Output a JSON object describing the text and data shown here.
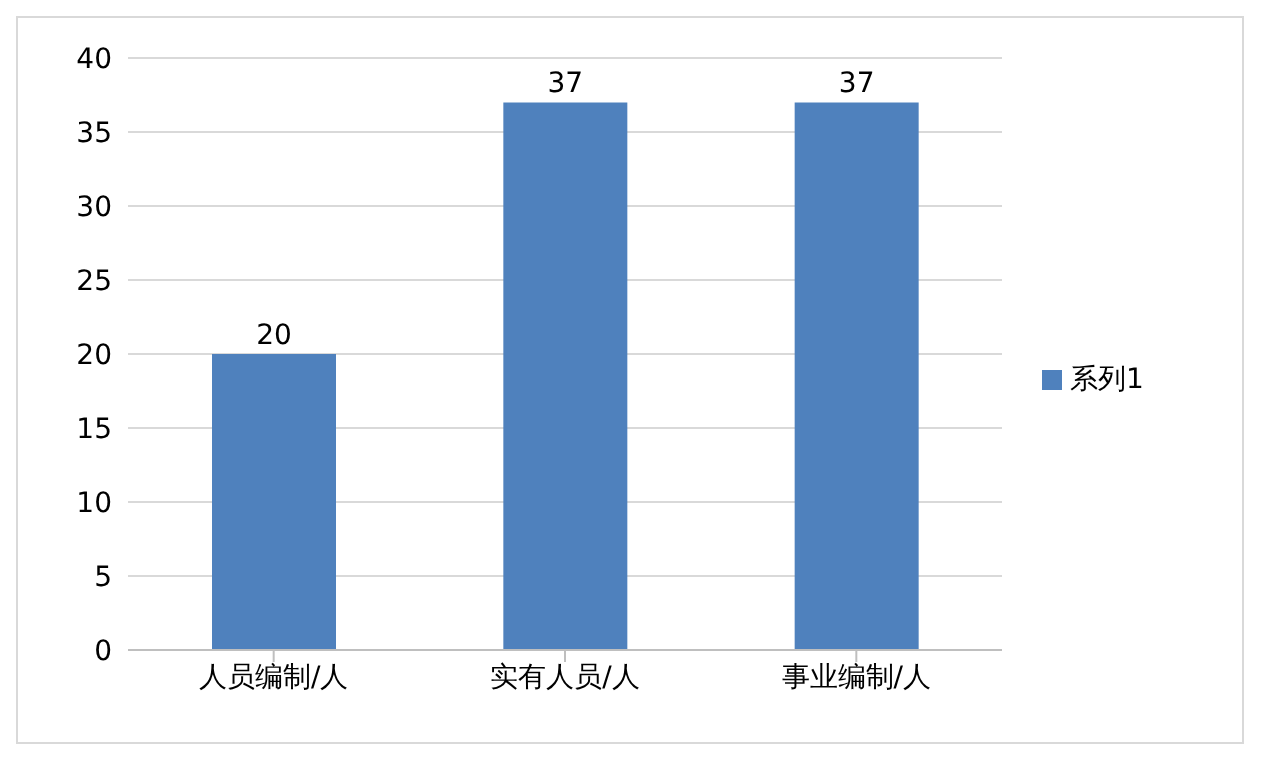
{
  "chart_data": {
    "type": "bar",
    "categories": [
      "人员编制/人",
      "实有人员/人",
      "事业编制/人"
    ],
    "series": [
      {
        "name": "系列1",
        "color": "#4f81bd",
        "values": [
          20,
          37,
          37
        ]
      }
    ],
    "ylim": [
      0,
      40
    ],
    "yticks": [
      0,
      5,
      10,
      15,
      20,
      25,
      30,
      35,
      40
    ],
    "grid": "y",
    "legend": "right",
    "data_labels": true
  }
}
